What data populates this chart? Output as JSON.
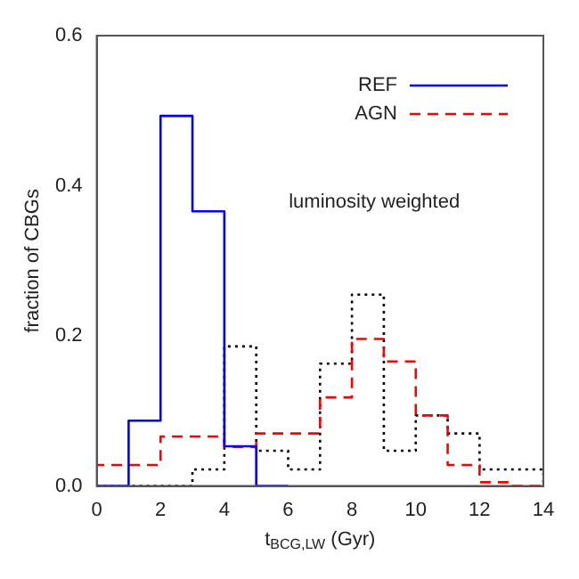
{
  "chart_data": {
    "type": "histogram",
    "xlabel": "t$_{BCG,LW}$ (Gyr)",
    "ylabel": "fraction of CBGs",
    "xlim": [
      0,
      14
    ],
    "xticks": [
      0,
      2,
      4,
      6,
      8,
      10,
      12,
      14
    ],
    "ylim": [
      0,
      0.6
    ],
    "yticks": [
      {
        "value": 0,
        "label": "0.0"
      },
      0.2,
      0.4,
      0.6
    ],
    "bins": [
      0,
      1,
      2,
      3,
      4,
      5,
      6,
      7,
      8,
      9,
      10,
      11,
      12,
      13,
      14
    ],
    "grid": false,
    "legend": "top right",
    "marker": "none",
    "annotations": [
      "luminosity weighted"
    ],
    "series": [
      {
        "name": "REF",
        "color": "#0000ff",
        "line_style": "solid",
        "bins": [
          0,
          1,
          2,
          3,
          4,
          5,
          6
        ],
        "values": [
          0,
          0.087,
          0.493,
          0.366,
          0.053,
          0
        ]
      },
      {
        "name": "AGN",
        "color": "#ff0000",
        "line_style": "dashed",
        "values": [
          0.028,
          0.028,
          0.066,
          0.066,
          0.052,
          0.07,
          0.07,
          0.118,
          0.196,
          0.166,
          0.094,
          0.028,
          0.005,
          0
        ]
      },
      {
        "color": "#000000",
        "line_style": "dotted",
        "values": [
          0,
          0,
          0,
          0.022,
          0.186,
          0.047,
          0.022,
          0.163,
          0.255,
          0.047,
          0.094,
          0.07,
          0.022,
          0.022
        ]
      }
    ]
  }
}
